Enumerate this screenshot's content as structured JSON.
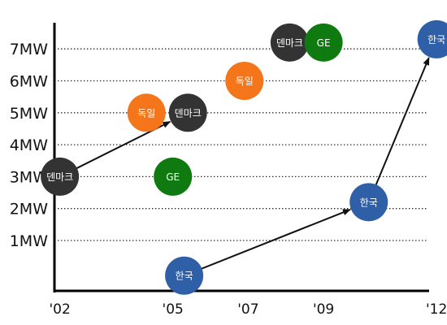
{
  "chart_data": {
    "type": "scatter",
    "title": "",
    "xlabel": "",
    "ylabel": "",
    "x_ticks": [
      "'02",
      "'05",
      "'07",
      "'09",
      "'12"
    ],
    "y_ticks": [
      "1MW",
      "2MW",
      "3MW",
      "4MW",
      "5MW",
      "6MW",
      "7MW"
    ],
    "ylim": [
      -1,
      8
    ],
    "grid": "horizontal dotted",
    "colors": {
      "denmark": "#333333",
      "germany": "#f5761a",
      "ge": "#0f7a10",
      "korea": "#2f5fa6",
      "arrow": "#111111"
    },
    "points": [
      {
        "label": "덴마크",
        "group": "denmark",
        "x": 2002,
        "y": 3.0
      },
      {
        "label": "덴마크",
        "group": "denmark",
        "x": 2005.4,
        "y": 5.0
      },
      {
        "label": "덴마크",
        "group": "denmark",
        "x": 2008.1,
        "y": 7.2
      },
      {
        "label": "독일",
        "group": "germany",
        "x": 2004.3,
        "y": 5.0
      },
      {
        "label": "독일",
        "group": "germany",
        "x": 2006.9,
        "y": 6.0
      },
      {
        "label": "GE",
        "group": "ge",
        "x": 2005.0,
        "y": 3.0
      },
      {
        "label": "GE",
        "group": "ge",
        "x": 2009.0,
        "y": 7.2
      },
      {
        "label": "한국",
        "group": "korea",
        "x": 2005.3,
        "y": -0.1
      },
      {
        "label": "한국",
        "group": "korea",
        "x": 2010.2,
        "y": 2.2
      },
      {
        "label": "한국",
        "group": "korea",
        "x": 2012.0,
        "y": 7.3
      }
    ],
    "arrows": [
      {
        "from": 0,
        "to": 1
      },
      {
        "from": 7,
        "to": 8
      },
      {
        "from": 8,
        "to": 9
      }
    ]
  }
}
